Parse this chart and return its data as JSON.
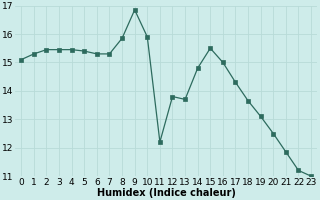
{
  "xlabel": "Humidex (Indice chaleur)",
  "x": [
    0,
    1,
    2,
    3,
    4,
    5,
    6,
    7,
    8,
    9,
    10,
    11,
    12,
    13,
    14,
    15,
    16,
    17,
    18,
    19,
    20,
    21,
    22,
    23
  ],
  "y": [
    15.1,
    15.3,
    15.45,
    15.45,
    15.45,
    15.4,
    15.3,
    15.3,
    15.85,
    16.85,
    15.9,
    12.2,
    13.8,
    13.7,
    14.8,
    15.5,
    15.0,
    14.3,
    13.65,
    13.1,
    12.5,
    11.85,
    11.2,
    11.0
  ],
  "ylim": [
    11,
    17
  ],
  "xlim": [
    -0.5,
    23.5
  ],
  "yticks": [
    11,
    12,
    13,
    14,
    15,
    16,
    17
  ],
  "xticks": [
    0,
    1,
    2,
    3,
    4,
    5,
    6,
    7,
    8,
    9,
    10,
    11,
    12,
    13,
    14,
    15,
    16,
    17,
    18,
    19,
    20,
    21,
    22,
    23
  ],
  "line_color": "#2d6b5e",
  "marker_color": "#2d6b5e",
  "bg_color": "#ceecea",
  "grid_color": "#b8dbd8",
  "xlabel_fontsize": 7,
  "tick_fontsize": 6.5
}
